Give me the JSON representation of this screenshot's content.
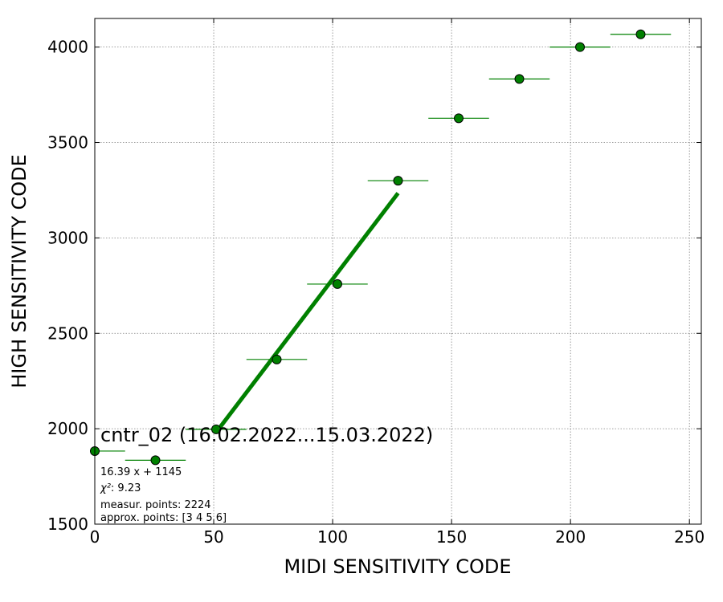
{
  "chart_data": {
    "type": "scatter",
    "title": "cntr_02 (16.02.2022...15.03.2022)",
    "xlabel": "MIDI SENSITIVITY CODE",
    "ylabel": "HIGH SENSITIVITY CODE",
    "xlim": [
      0,
      255
    ],
    "ylim": [
      1500,
      4150
    ],
    "xticks": [
      0,
      50,
      100,
      150,
      200,
      250
    ],
    "yticks": [
      1500,
      2000,
      2500,
      3000,
      3500,
      4000
    ],
    "grid": true,
    "colors": {
      "series": "#008000",
      "edge": "#000000",
      "grid": "#808080"
    },
    "series": [
      {
        "x": [
          0,
          25.5,
          51,
          76.5,
          102,
          127.5,
          153,
          178.5,
          204,
          229.5
        ],
        "y": [
          1883,
          1835,
          1997,
          2363,
          2758,
          3300,
          3627,
          3833,
          4000,
          4067
        ],
        "xerr": [
          12.75,
          12.75,
          12.75,
          12.75,
          12.75,
          12.75,
          12.75,
          12.75,
          12.75,
          12.75
        ]
      }
    ],
    "fit": {
      "slope": 16.39,
      "intercept": 1145,
      "x_range": [
        51,
        127.5
      ]
    },
    "annotations": {
      "equation": "16.39 x + 1145",
      "chi2_label": "χ²",
      "chi2_value": ": 9.23",
      "measur_points": "measur. points: 2224",
      "approx_points": "approx. points: [3 4 5 6]"
    }
  }
}
